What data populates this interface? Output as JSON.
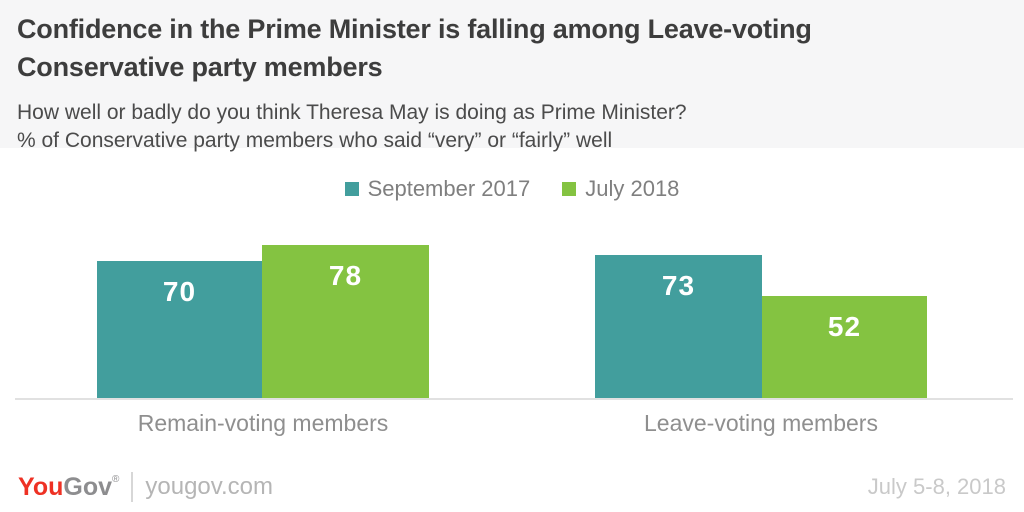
{
  "header": {
    "title_line1": "Confidence in the Prime Minister is falling among Leave-voting",
    "title_line2": "Conservative party members",
    "subtitle_line1": "How well or badly do you think Theresa May is doing as Prime Minister?",
    "subtitle_line2": "% of Conservative party members who said “very” or “fairly” well"
  },
  "legend": {
    "items": [
      {
        "label": "September 2017",
        "color": "#429e9d"
      },
      {
        "label": "July 2018",
        "color": "#84c341"
      }
    ]
  },
  "chart_data": {
    "type": "bar",
    "title": "Confidence in the Prime Minister is falling among Leave-voting Conservative party members",
    "subtitle": "How well or badly do you think Theresa May is doing as Prime Minister? % of Conservative party members who said “very” or “fairly” well",
    "categories": [
      "Remain-voting members",
      "Leave-voting members"
    ],
    "series": [
      {
        "name": "September 2017",
        "color": "#429e9d",
        "values": [
          70,
          73
        ]
      },
      {
        "name": "July 2018",
        "color": "#84c341",
        "values": [
          78,
          52
        ]
      }
    ],
    "unit": "%",
    "ylim": [
      0,
      100
    ],
    "grid": false,
    "legend_position": "top-center",
    "value_labels": true
  },
  "footer": {
    "brand_you": "You",
    "brand_gov": "Gov",
    "reg_mark": "®",
    "site": "yougov.com",
    "date_range": "July 5-8, 2018"
  }
}
